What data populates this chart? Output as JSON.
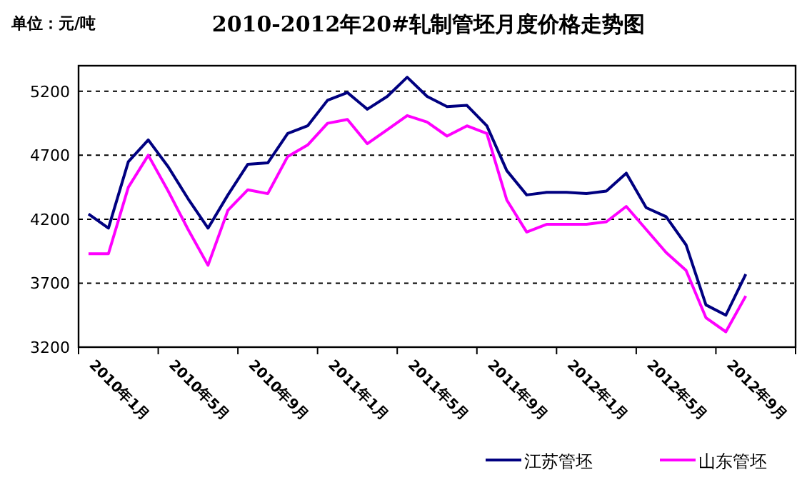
{
  "chart_data": {
    "type": "line",
    "title": "2010-2012年20#轧制管坯月度价格走势图",
    "annotations": [
      "单位：元/吨"
    ],
    "categories": [
      "2010年1月",
      null,
      null,
      null,
      "2010年5月",
      null,
      null,
      null,
      "2010年9月",
      null,
      null,
      null,
      "2011年1月",
      null,
      null,
      null,
      "2011年5月",
      null,
      null,
      null,
      "2011年9月",
      null,
      null,
      null,
      "2012年1月",
      null,
      null,
      null,
      "2012年5月",
      null,
      null,
      null,
      "2012年9月",
      null,
      null,
      null
    ],
    "series": [
      {
        "name": "江苏管坯",
        "color": "#000080",
        "values": [
          4240,
          4130,
          4650,
          4820,
          4610,
          4360,
          4130,
          4390,
          4630,
          4640,
          4870,
          4930,
          5130,
          5190,
          5060,
          5160,
          5310,
          5160,
          5080,
          5090,
          4930,
          4580,
          4390,
          4410,
          4410,
          4400,
          4420,
          4560,
          4290,
          4220,
          4000,
          3530,
          3450,
          3770,
          null,
          null
        ]
      },
      {
        "name": "山东管坯",
        "color": "#ff00ff",
        "values": [
          3930,
          3930,
          4450,
          4700,
          4420,
          4120,
          3840,
          4270,
          4430,
          4400,
          4690,
          4780,
          4950,
          4980,
          4790,
          4900,
          5010,
          4960,
          4850,
          4930,
          4870,
          4350,
          4100,
          4160,
          4160,
          4160,
          4180,
          4300,
          4120,
          3940,
          3800,
          3430,
          3320,
          3600,
          null,
          null
        ]
      }
    ],
    "ylim": [
      3200,
      5400
    ],
    "yticks": [
      3200,
      3700,
      4200,
      4700,
      5200
    ],
    "grid": "y",
    "legend": "bottom right",
    "marker": "none",
    "line_style": "solid"
  }
}
